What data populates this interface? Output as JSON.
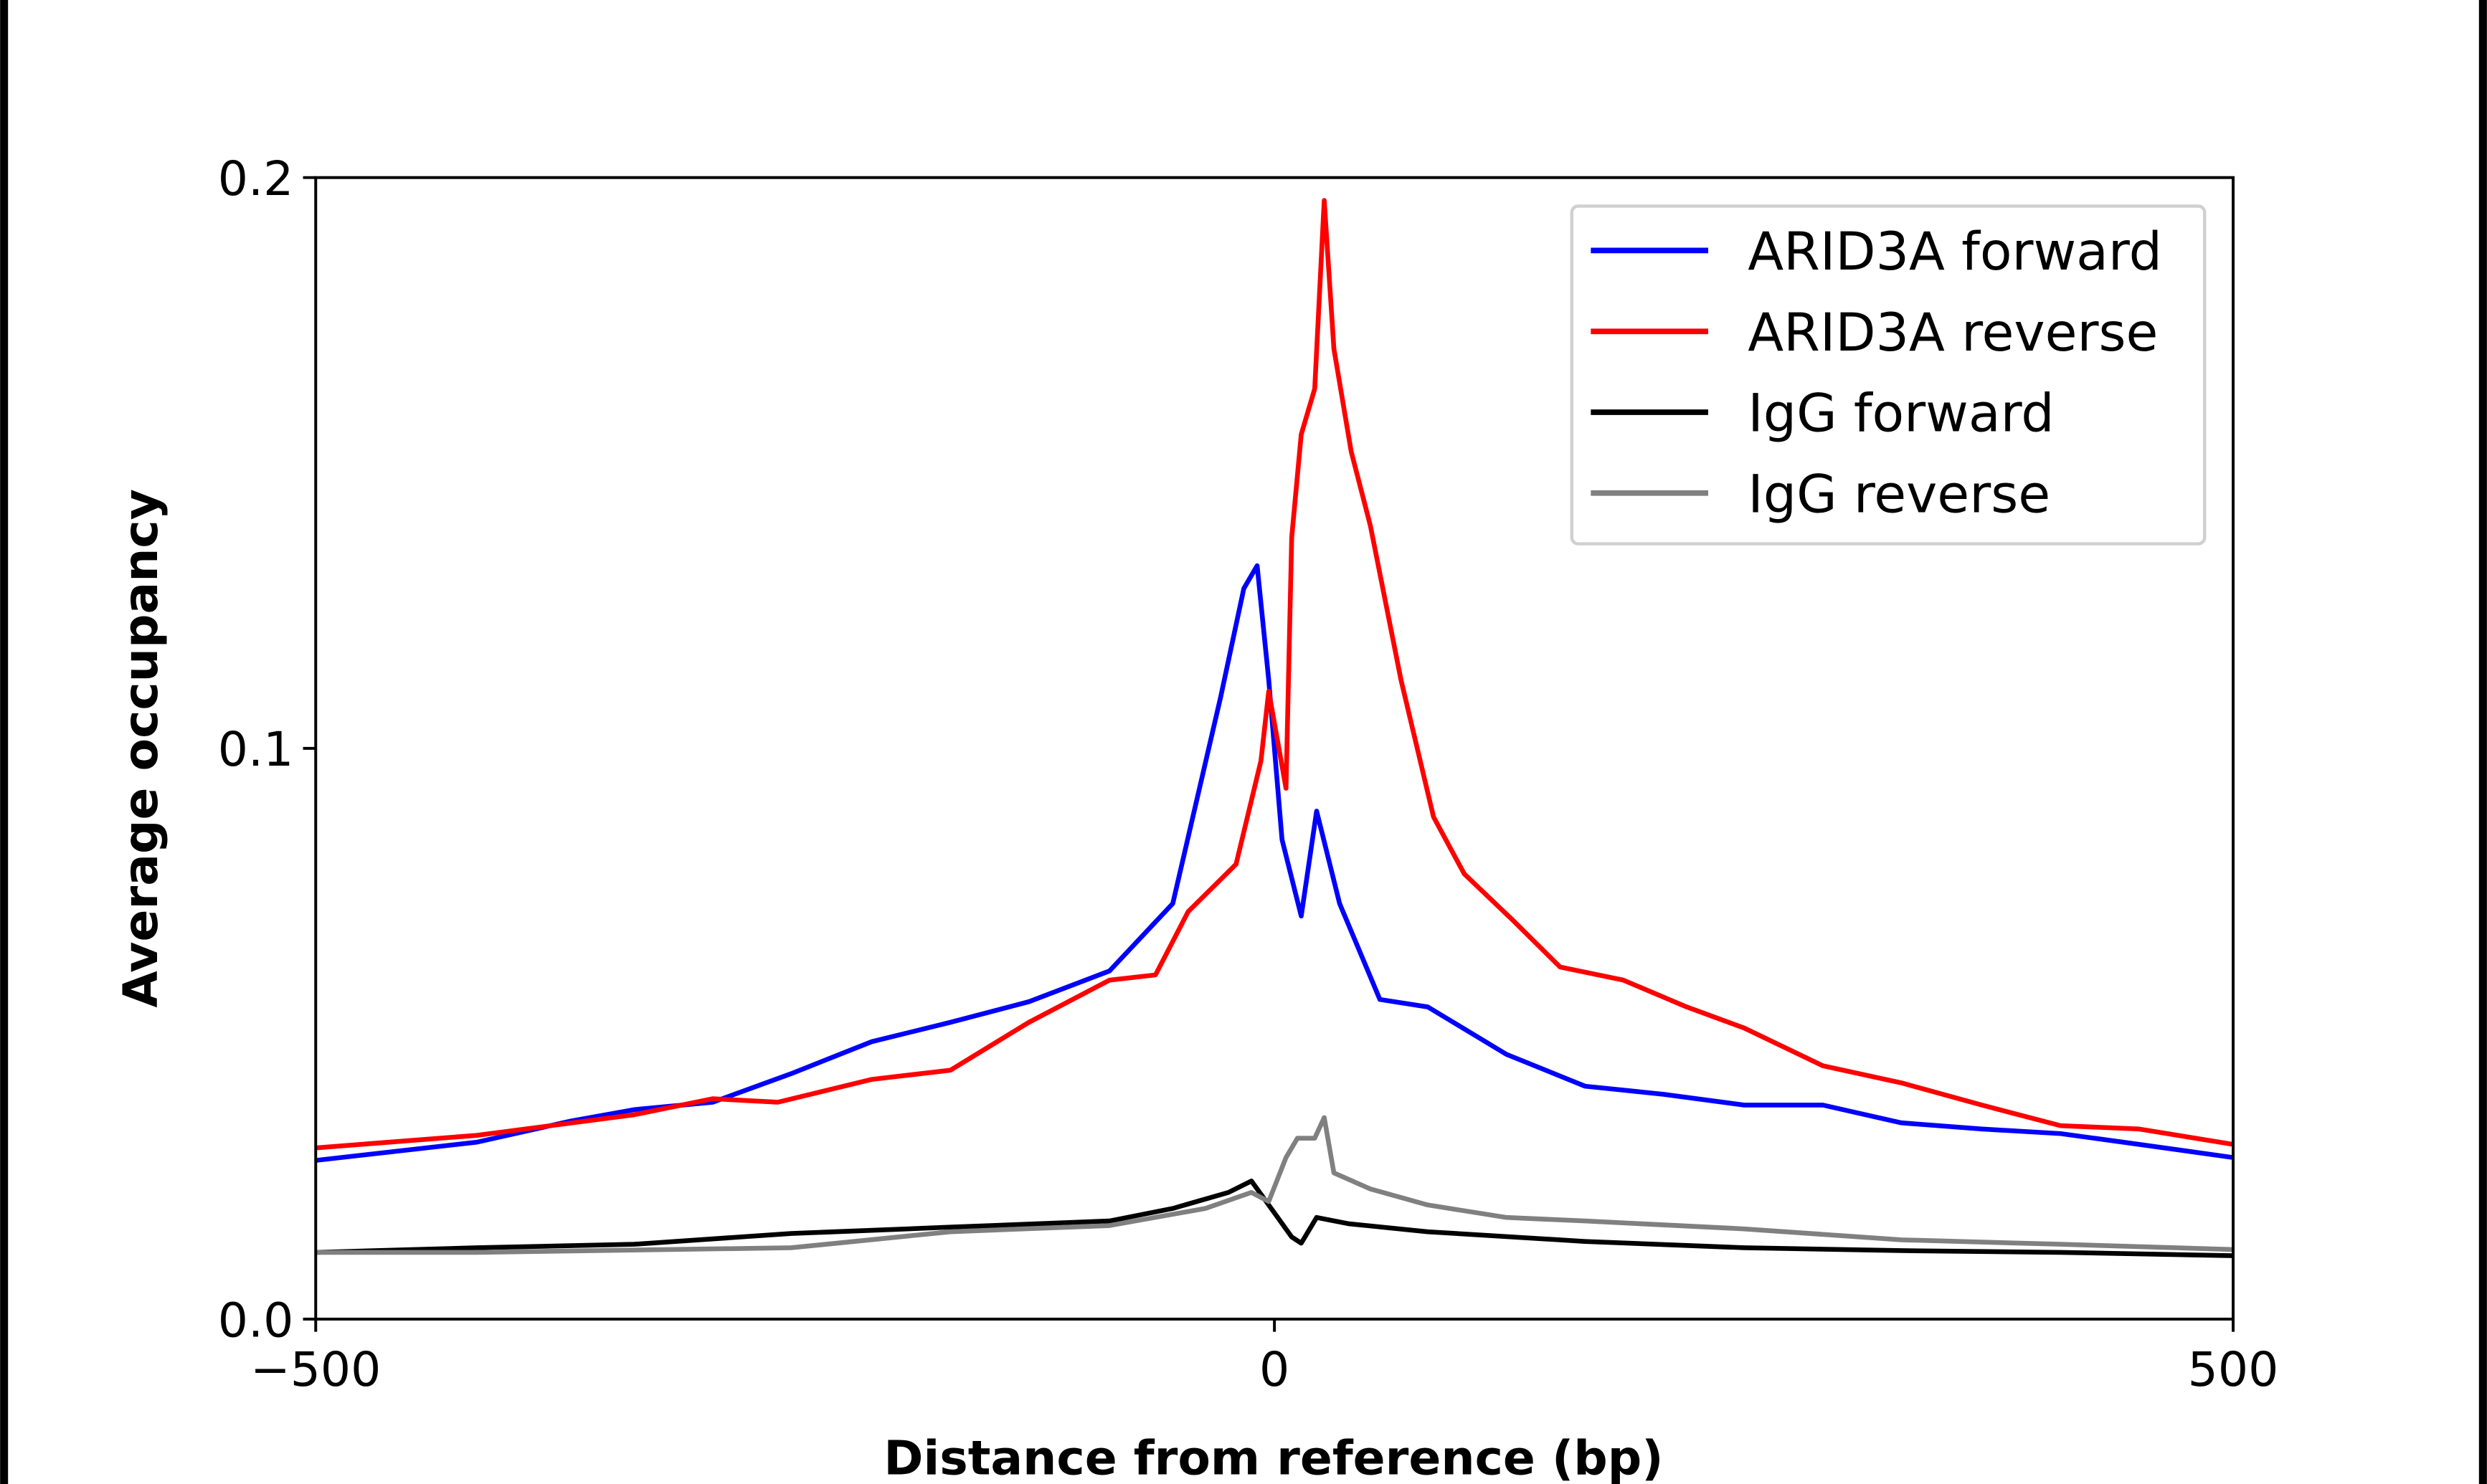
{
  "chart_data": {
    "type": "line",
    "xlabel": "Distance from reference (bp)",
    "ylabel": "Average occupancy",
    "xlim": [
      -500,
      500
    ],
    "ylim": [
      0,
      0.2
    ],
    "xticks": [
      {
        "value": -500,
        "label": "−500"
      },
      {
        "value": 0,
        "label": "0"
      },
      {
        "value": 500,
        "label": "500"
      }
    ],
    "yticks": [
      {
        "value": 0,
        "label": "0.0"
      },
      {
        "value": 0.1,
        "label": "0.1"
      },
      {
        "value": 0.2,
        "label": "0.2"
      }
    ],
    "grid": false,
    "legend_position": "top-right",
    "series": [
      {
        "name": "ARID3A forward",
        "color": "#0000ff",
        "x": [
          -500,
          -416,
          -367,
          -334,
          -293,
          -252,
          -210,
          -169,
          -128,
          -86,
          -53,
          -28,
          -16,
          -9,
          -3,
          4,
          14,
          22,
          34,
          55,
          80,
          121,
          162,
          203,
          245,
          286,
          327,
          369,
          410,
          451,
          500
        ],
        "y": [
          0.0278,
          0.031,
          0.0347,
          0.0367,
          0.038,
          0.043,
          0.0486,
          0.052,
          0.0556,
          0.061,
          0.0728,
          0.109,
          0.128,
          0.132,
          0.112,
          0.084,
          0.0706,
          0.089,
          0.0728,
          0.056,
          0.0547,
          0.0464,
          0.0408,
          0.0394,
          0.0375,
          0.0375,
          0.0344,
          0.0333,
          0.0325,
          0.0306,
          0.0283
        ]
      },
      {
        "name": "ARID3A reverse",
        "color": "#ff0000",
        "x": [
          -500,
          -416,
          -334,
          -293,
          -259,
          -210,
          -169,
          -128,
          -86,
          -62,
          -45,
          -20,
          -7,
          -3,
          6,
          9,
          14,
          21,
          26,
          31,
          40,
          50,
          66,
          83,
          99,
          124,
          149,
          182,
          215,
          245,
          286,
          327,
          369,
          410,
          451,
          500
        ],
        "y": [
          0.03,
          0.0322,
          0.0358,
          0.0386,
          0.038,
          0.042,
          0.0436,
          0.052,
          0.0594,
          0.0603,
          0.0714,
          0.0797,
          0.0978,
          0.11,
          0.093,
          0.137,
          0.155,
          0.163,
          0.196,
          0.17,
          0.152,
          0.139,
          0.112,
          0.088,
          0.078,
          0.07,
          0.0617,
          0.0594,
          0.0547,
          0.051,
          0.0444,
          0.0414,
          0.0375,
          0.0339,
          0.0333,
          0.0306
        ]
      },
      {
        "name": "IgG forward",
        "color": "#000000",
        "x": [
          -500,
          -416,
          -334,
          -252,
          -169,
          -86,
          -53,
          -24,
          -12,
          -3,
          9,
          14,
          22,
          39,
          80,
          162,
          245,
          327,
          410,
          500
        ],
        "y": [
          0.0117,
          0.0125,
          0.0131,
          0.015,
          0.0161,
          0.0172,
          0.0194,
          0.0222,
          0.0242,
          0.02,
          0.0144,
          0.0133,
          0.0178,
          0.0167,
          0.0153,
          0.0136,
          0.0125,
          0.012,
          0.0117,
          0.0111
        ]
      },
      {
        "name": "IgG reverse",
        "color": "#808080",
        "x": [
          -500,
          -416,
          -252,
          -169,
          -86,
          -36,
          -12,
          -3,
          6,
          12,
          21,
          26,
          31,
          50,
          80,
          121,
          162,
          245,
          327,
          410,
          500
        ],
        "y": [
          0.0117,
          0.0117,
          0.0125,
          0.0153,
          0.0164,
          0.0194,
          0.0222,
          0.0206,
          0.0283,
          0.0317,
          0.0317,
          0.0353,
          0.0256,
          0.0228,
          0.02,
          0.0178,
          0.0172,
          0.0158,
          0.0139,
          0.0131,
          0.0122
        ]
      }
    ]
  }
}
